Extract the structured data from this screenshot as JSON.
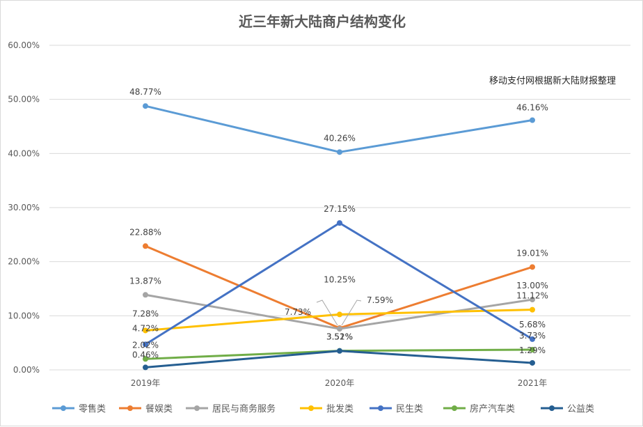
{
  "chart_data": {
    "type": "line",
    "title": "近三年新大陆商户结构变化",
    "annotation": "移动支付网根据新大陆财报整理",
    "categories": [
      "2019年",
      "2020年",
      "2021年"
    ],
    "y_tick_labels": [
      "0.00%",
      "10.00%",
      "20.00%",
      "30.00%",
      "40.00%",
      "50.00%",
      "60.00%"
    ],
    "ylim": [
      0,
      60
    ],
    "grid": true,
    "legend_position": "bottom",
    "series": [
      {
        "name": "零售类",
        "color": "#5B9BD5",
        "values": [
          48.77,
          40.26,
          46.16
        ],
        "labels": [
          "48.77%",
          "40.26%",
          "46.16%"
        ]
      },
      {
        "name": "餐娱类",
        "color": "#ED7D31",
        "values": [
          22.88,
          7.73,
          19.01
        ],
        "labels": [
          "22.88%",
          "7.73%",
          "19.01%"
        ]
      },
      {
        "name": "居民与商务服务",
        "color": "#A5A5A5",
        "values": [
          13.87,
          7.59,
          13.0
        ],
        "labels": [
          "13.87%",
          "7.59%",
          "13.00%"
        ]
      },
      {
        "name": "批发类",
        "color": "#FFC000",
        "values": [
          7.28,
          10.25,
          11.12
        ],
        "labels": [
          "7.28%",
          "10.25%",
          "11.12%"
        ]
      },
      {
        "name": "民生类",
        "color": "#4472C4",
        "values": [
          4.72,
          27.15,
          5.68
        ],
        "labels": [
          "4.72%",
          "27.15%",
          "5.68%"
        ]
      },
      {
        "name": "房产汽车类",
        "color": "#70AD47",
        "values": [
          2.02,
          3.52,
          3.73
        ],
        "labels": [
          "2.02%",
          "3.52%",
          "3.73%"
        ]
      },
      {
        "name": "公益类",
        "color": "#255E91",
        "values": [
          0.46,
          3.51,
          1.29
        ],
        "labels": [
          "0.46%",
          "3.51%",
          "1.29%"
        ]
      }
    ]
  }
}
